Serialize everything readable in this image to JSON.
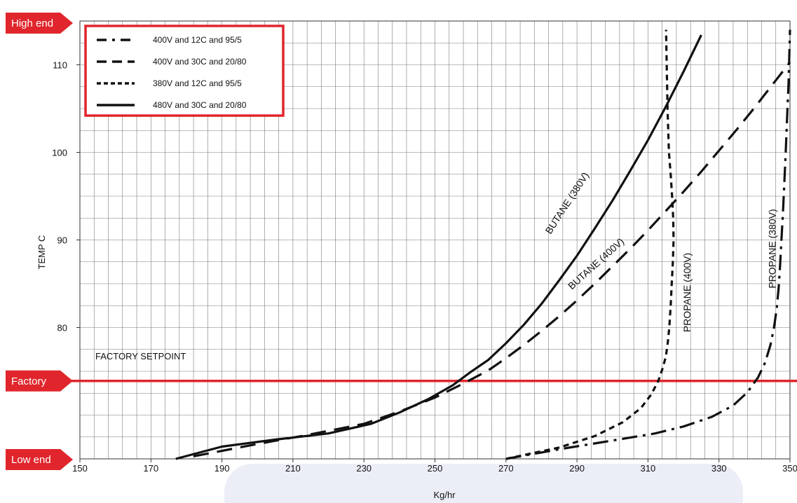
{
  "chart_data": {
    "type": "line",
    "xlabel": "Kg/hr",
    "ylabel": "TEMP C",
    "xlim": [
      150,
      350
    ],
    "ylim": [
      65,
      115
    ],
    "x_ticks": [
      150,
      170,
      190,
      210,
      230,
      250,
      270,
      290,
      310,
      330,
      350
    ],
    "y_ticks": [
      80,
      90,
      100,
      110
    ],
    "grid": true,
    "legend_position": "top-left",
    "legend": [
      {
        "label": "400V and 12C and 95/5",
        "style": "dash-dot"
      },
      {
        "label": "400V and 30C and 20/80",
        "style": "long-dash"
      },
      {
        "label": "380V and 12C and 95/5",
        "style": "short-dash"
      },
      {
        "label": "480V and 30C and 20/80",
        "style": "solid"
      }
    ],
    "series": [
      {
        "label": "BUTANE (380V)",
        "style": "solid",
        "x": [
          177,
          190,
          205,
          220,
          232,
          240,
          248,
          255,
          260,
          265,
          270,
          275,
          280,
          285,
          290,
          295,
          300,
          305,
          310,
          315,
          320,
          325
        ],
        "y": [
          65.0,
          66.4,
          67.2,
          67.9,
          69.0,
          70.3,
          71.8,
          73.4,
          74.9,
          76.3,
          78.2,
          80.3,
          82.7,
          85.4,
          88.2,
          91.3,
          94.5,
          97.9,
          101.4,
          105.2,
          109.2,
          113.4
        ]
      },
      {
        "label": "BUTANE (400V)",
        "style": "long-dash",
        "x": [
          182,
          200,
          215,
          230,
          240,
          250,
          258,
          265,
          270,
          275,
          280,
          285,
          290,
          295,
          300,
          305,
          310,
          315,
          320,
          325,
          330,
          335,
          340,
          345,
          350
        ],
        "y": [
          65.3,
          66.7,
          67.8,
          69.0,
          70.4,
          72.0,
          73.6,
          75.1,
          76.5,
          78.0,
          79.6,
          81.3,
          83.1,
          85.0,
          87.0,
          89.0,
          91.1,
          93.3,
          95.5,
          97.8,
          100.2,
          102.6,
          105.1,
          107.7,
          110.3
        ]
      },
      {
        "label": "PROPANE (400V)",
        "style": "short-dash",
        "x": [
          270,
          285,
          295,
          303,
          308,
          311,
          313,
          314,
          315,
          315.5,
          316,
          316.4,
          316.7,
          317,
          317.2,
          317.1,
          316.8,
          316.4,
          315.9,
          315.5,
          315.1
        ],
        "y": [
          65.0,
          66.3,
          67.6,
          69.2,
          70.8,
          72.4,
          74.0,
          75.2,
          76.6,
          78.0,
          80.0,
          82.5,
          85.0,
          87.5,
          90.0,
          92.5,
          95.0,
          97.5,
          100.0,
          105.0,
          114.0
        ]
      },
      {
        "label": "PROPANE (380V)",
        "style": "dash-dot",
        "x": [
          270,
          285,
          300,
          312,
          320,
          328,
          334,
          338,
          341,
          343,
          344.5,
          345.5,
          346.2,
          346.8,
          347.2,
          347.6,
          348.0,
          348.4,
          348.8,
          349.2,
          349.6,
          350
        ],
        "y": [
          65.0,
          66.1,
          67.1,
          67.9,
          68.7,
          69.8,
          71.1,
          72.6,
          74.3,
          76.0,
          78.0,
          80.0,
          82.0,
          84.5,
          87.0,
          90.0,
          93.0,
          96.5,
          100.0,
          104.0,
          108.0,
          114.0
        ]
      }
    ],
    "reference_line": {
      "label": "FACTORY SETPOINT",
      "y": 73.9,
      "color": "#e0262c"
    },
    "side_markers": [
      {
        "label": "High end",
        "y": 115
      },
      {
        "label": "Factory",
        "y": 73.9
      },
      {
        "label": "Low end",
        "y": 65
      }
    ],
    "colors": {
      "accent": "#e0262c",
      "grid": "#7a7a7a",
      "line": "#111111",
      "watermark": "#dfe3f2"
    }
  }
}
